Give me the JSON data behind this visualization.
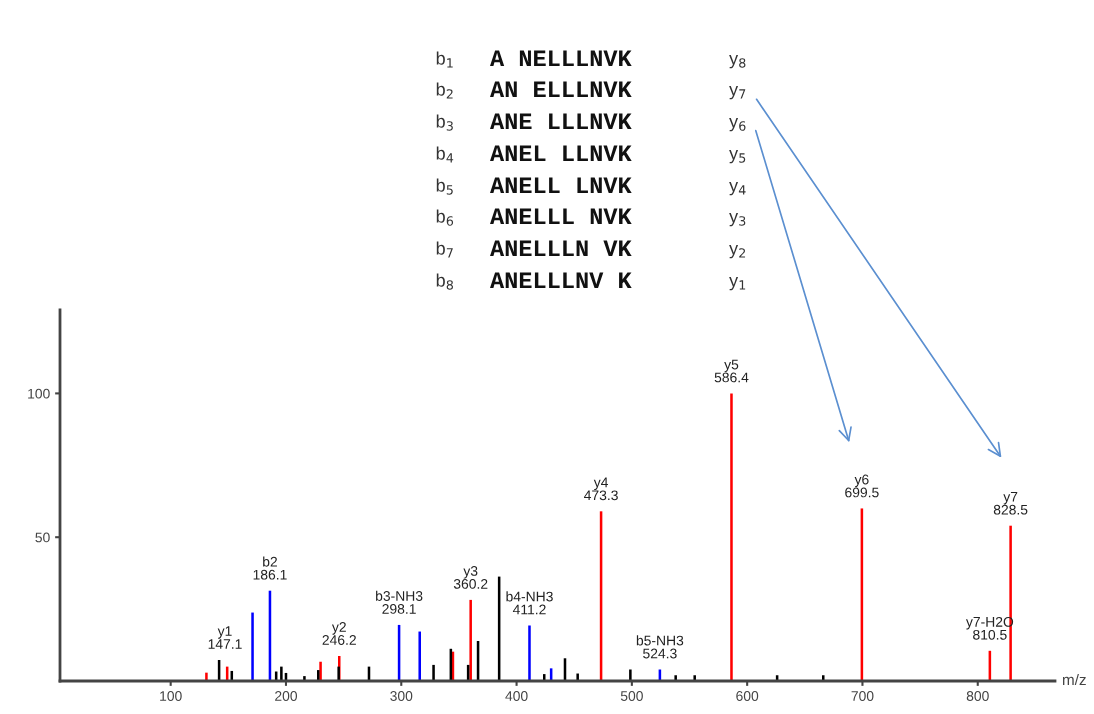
{
  "chart_data": {
    "type": "bar",
    "xlabel": "m/z",
    "xlim": [
      4,
      867
    ],
    "ylim": [
      0,
      129
    ],
    "xticks": [
      100,
      200,
      300,
      400,
      500,
      600,
      700,
      800
    ],
    "yticks": [
      50,
      100
    ],
    "grid": false,
    "series": [
      {
        "color": "#ff0000",
        "x": [
          131,
          149,
          230,
          246.2,
          344.8,
          360.2,
          473.3,
          586.4,
          699.5,
          810.5,
          828.5
        ],
        "values": [
          2.9,
          5,
          6.7,
          8.7,
          10.2,
          28.2,
          59,
          100,
          60,
          10.5,
          54
        ]
      },
      {
        "color": "#0000ff",
        "x": [
          171,
          186.1,
          298.1,
          316,
          411.2,
          430,
          524.3
        ],
        "values": [
          23.8,
          31.4,
          19.5,
          17.2,
          19.3,
          4.4,
          4
        ]
      },
      {
        "color": "#000000",
        "x": [
          142,
          153,
          191.5,
          196,
          200,
          216,
          228,
          245.7,
          272,
          328,
          343,
          358,
          366.6,
          384.9,
          424,
          442,
          453,
          498.7,
          538,
          554.5,
          626,
          666
        ],
        "values": [
          7.3,
          3.5,
          3.3,
          5,
          2.8,
          1.7,
          3.8,
          5,
          5,
          5.6,
          11.2,
          5.6,
          13.9,
          36.3,
          2.4,
          7.9,
          2.6,
          4,
          2,
          2,
          2,
          2
        ]
      }
    ],
    "annotations": [
      {
        "text": "y1\n147.1",
        "x": 147.1,
        "y": 7.3
      },
      {
        "text": "b2\n186.1",
        "x": 186.1,
        "y": 31.4
      },
      {
        "text": "y2\n246.2",
        "x": 246.2,
        "y": 8.7
      },
      {
        "text": "b3-NH3\n298.1",
        "x": 298.1,
        "y": 19.5
      },
      {
        "text": "y3\n360.2",
        "x": 360.2,
        "y": 28.2
      },
      {
        "text": "b4-NH3\n411.2",
        "x": 411.2,
        "y": 19.3
      },
      {
        "text": "y4\n473.3",
        "x": 473.3,
        "y": 59
      },
      {
        "text": "b5-NH3\n524.3",
        "x": 524.3,
        "y": 4
      },
      {
        "text": "y5\n586.4",
        "x": 586.4,
        "y": 100
      },
      {
        "text": "y6\n699.5",
        "x": 699.5,
        "y": 60
      },
      {
        "text": "y7-H2O\n810.5",
        "x": 810.5,
        "y": 10.5
      },
      {
        "text": "y7\n828.5",
        "x": 828.5,
        "y": 54
      },
      "b$_{1}$",
      "A NELLLNVK",
      "y$_{8}$",
      "b$_{2}$",
      "AN ELLLNVK",
      "y$_{7}$",
      "b$_{3}$",
      "ANE LLLNVK",
      "y$_{6}$",
      "b$_{4}$",
      "ANEL LLNVK",
      "y$_{5}$",
      "b$_{5}$",
      "ANELL LNVK",
      "y$_{4}$",
      "b$_{6}$",
      "ANELLL NVK",
      "y$_{3}$",
      "b$_{7}$",
      "ANELLLN VK",
      "y$_{2}$",
      "b$_{8}$",
      "ANELLLNV K",
      "y$_{1}$"
    ]
  }
}
